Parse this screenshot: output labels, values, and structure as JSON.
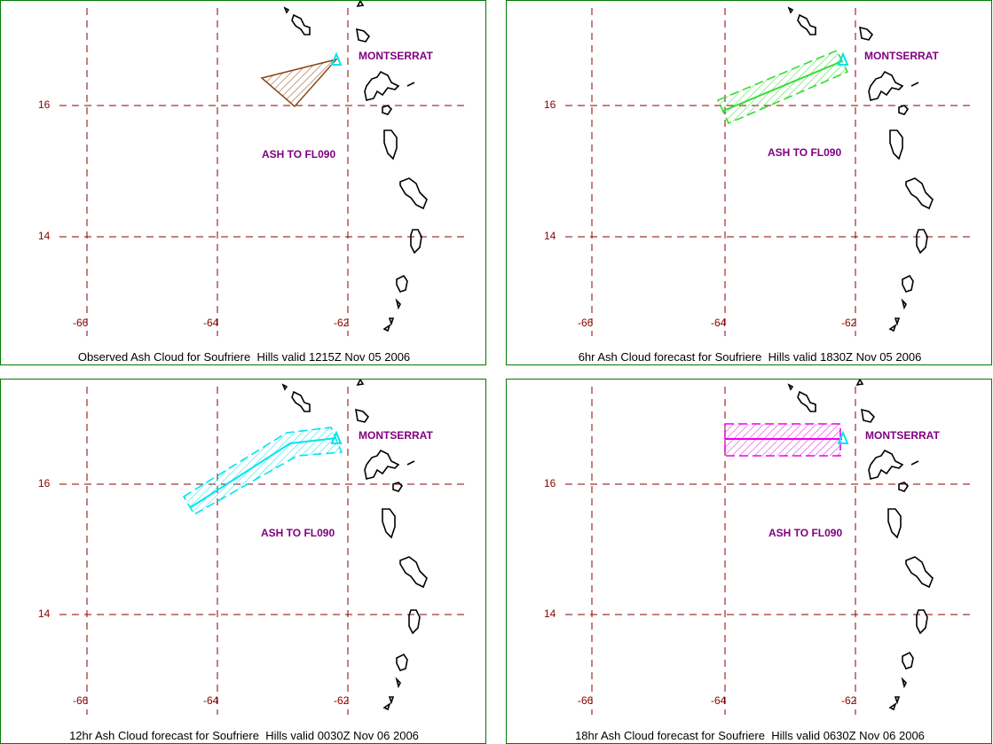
{
  "colors": {
    "grid": "#8b0000",
    "tick_text": "#8b0000",
    "label_text": "#800080",
    "frame": "#007a00",
    "coast": "#000000",
    "volcano": "#00e5ee"
  },
  "panels": [
    {
      "caption": "Observed Ash Cloud for Soufriere  Hills valid 1215Z Nov 05 2006",
      "location_label": "MONTSERRAT",
      "ash_label": "ASH TO FL090",
      "ash_color": "#8b4513",
      "ash_style": "observed-triangle"
    },
    {
      "caption": "6hr Ash Cloud forecast for Soufriere  Hills valid 1830Z Nov 05 2006",
      "location_label": "MONTSERRAT",
      "ash_label": "ASH TO FL090",
      "ash_color": "#33dd33",
      "ash_style": "forecast-plume"
    },
    {
      "caption": "12hr Ash Cloud forecast for Soufriere  Hills valid 0030Z Nov 06 2006",
      "location_label": "MONTSERRAT",
      "ash_label": "ASH TO FL090",
      "ash_color": "#00e5ee",
      "ash_style": "forecast-plume"
    },
    {
      "caption": "18hr Ash Cloud forecast for Soufriere  Hills valid 0630Z Nov 06 2006",
      "location_label": "MONTSERRAT",
      "ash_label": "ASH TO FL090",
      "ash_color": "#ee00ee",
      "ash_style": "forecast-box"
    }
  ],
  "axes": {
    "lat_ticks": [
      "16",
      "14"
    ],
    "lon_ticks": [
      "-66",
      "-64",
      "-62"
    ]
  }
}
